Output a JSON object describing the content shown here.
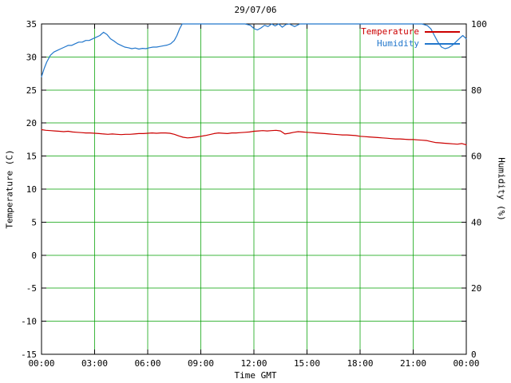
{
  "chart_data": {
    "type": "line",
    "title": "29/07/06",
    "grid": {
      "on": true,
      "color": "#00a000"
    },
    "frame_color": "#000000",
    "background": "#ffffff",
    "legend": {
      "position": "top-right-inside"
    },
    "x_axis": {
      "label": "Time GMT",
      "range": [
        0,
        24
      ],
      "ticks": [
        "00:00",
        "03:00",
        "06:00",
        "09:00",
        "12:00",
        "15:00",
        "18:00",
        "21:00",
        "00:00"
      ],
      "tick_hours": [
        0,
        3,
        6,
        9,
        12,
        15,
        18,
        21,
        24
      ]
    },
    "y_left": {
      "label": "Temperature (C)",
      "range": [
        -15,
        35
      ],
      "ticks": [
        35,
        30,
        25,
        20,
        15,
        10,
        5,
        0,
        -5,
        -10,
        -15
      ]
    },
    "y_right": {
      "label": "Humidity (%)",
      "range": [
        0,
        100
      ],
      "ticks": [
        100,
        80,
        60,
        40,
        20,
        0
      ]
    },
    "series": [
      {
        "name": "Temperature",
        "axis": "left",
        "color": "#cc0000",
        "points": [
          [
            0,
            19
          ],
          [
            0.25,
            18.9
          ],
          [
            0.5,
            18.85
          ],
          [
            0.75,
            18.8
          ],
          [
            1,
            18.75
          ],
          [
            1.25,
            18.7
          ],
          [
            1.5,
            18.75
          ],
          [
            1.75,
            18.65
          ],
          [
            2,
            18.6
          ],
          [
            2.25,
            18.55
          ],
          [
            2.5,
            18.5
          ],
          [
            2.75,
            18.5
          ],
          [
            3,
            18.45
          ],
          [
            3.25,
            18.4
          ],
          [
            3.5,
            18.35
          ],
          [
            3.75,
            18.3
          ],
          [
            4,
            18.35
          ],
          [
            4.25,
            18.3
          ],
          [
            4.5,
            18.25
          ],
          [
            4.75,
            18.3
          ],
          [
            5,
            18.3
          ],
          [
            5.25,
            18.35
          ],
          [
            5.5,
            18.4
          ],
          [
            5.75,
            18.4
          ],
          [
            6,
            18.45
          ],
          [
            6.25,
            18.5
          ],
          [
            6.5,
            18.45
          ],
          [
            6.75,
            18.5
          ],
          [
            7,
            18.5
          ],
          [
            7.25,
            18.45
          ],
          [
            7.5,
            18.3
          ],
          [
            7.75,
            18.05
          ],
          [
            8,
            17.85
          ],
          [
            8.25,
            17.75
          ],
          [
            8.5,
            17.8
          ],
          [
            8.75,
            17.9
          ],
          [
            9,
            18
          ],
          [
            9.25,
            18.1
          ],
          [
            9.5,
            18.25
          ],
          [
            9.75,
            18.4
          ],
          [
            10,
            18.5
          ],
          [
            10.25,
            18.45
          ],
          [
            10.5,
            18.4
          ],
          [
            10.75,
            18.5
          ],
          [
            11,
            18.5
          ],
          [
            11.25,
            18.55
          ],
          [
            11.5,
            18.6
          ],
          [
            11.75,
            18.65
          ],
          [
            12,
            18.75
          ],
          [
            12.25,
            18.8
          ],
          [
            12.5,
            18.85
          ],
          [
            12.75,
            18.8
          ],
          [
            13,
            18.85
          ],
          [
            13.25,
            18.9
          ],
          [
            13.5,
            18.8
          ],
          [
            13.75,
            18.35
          ],
          [
            14,
            18.45
          ],
          [
            14.25,
            18.6
          ],
          [
            14.5,
            18.7
          ],
          [
            14.75,
            18.65
          ],
          [
            15,
            18.6
          ],
          [
            15.25,
            18.55
          ],
          [
            15.5,
            18.5
          ],
          [
            15.75,
            18.45
          ],
          [
            16,
            18.4
          ],
          [
            16.25,
            18.35
          ],
          [
            16.5,
            18.3
          ],
          [
            16.75,
            18.25
          ],
          [
            17,
            18.2
          ],
          [
            17.25,
            18.2
          ],
          [
            17.5,
            18.15
          ],
          [
            17.75,
            18.1
          ],
          [
            18,
            18
          ],
          [
            18.25,
            17.95
          ],
          [
            18.5,
            17.9
          ],
          [
            18.75,
            17.85
          ],
          [
            19,
            17.8
          ],
          [
            19.25,
            17.75
          ],
          [
            19.5,
            17.7
          ],
          [
            19.75,
            17.65
          ],
          [
            20,
            17.6
          ],
          [
            20.25,
            17.6
          ],
          [
            20.5,
            17.55
          ],
          [
            20.75,
            17.5
          ],
          [
            21,
            17.5
          ],
          [
            21.25,
            17.45
          ],
          [
            21.5,
            17.4
          ],
          [
            21.75,
            17.35
          ],
          [
            22,
            17.2
          ],
          [
            22.25,
            17.05
          ],
          [
            22.5,
            17
          ],
          [
            22.75,
            16.95
          ],
          [
            23,
            16.9
          ],
          [
            23.25,
            16.85
          ],
          [
            23.5,
            16.8
          ],
          [
            23.75,
            16.9
          ],
          [
            24,
            16.7
          ]
        ]
      },
      {
        "name": "Humidity",
        "axis": "right",
        "color": "#2277cc",
        "points": [
          [
            0,
            84
          ],
          [
            0.15,
            86.5
          ],
          [
            0.3,
            88.5
          ],
          [
            0.5,
            90.5
          ],
          [
            0.7,
            91.5
          ],
          [
            0.9,
            92
          ],
          [
            1.1,
            92.5
          ],
          [
            1.3,
            93
          ],
          [
            1.5,
            93.5
          ],
          [
            1.7,
            93.5
          ],
          [
            1.9,
            94
          ],
          [
            2.1,
            94.5
          ],
          [
            2.3,
            94.5
          ],
          [
            2.5,
            95
          ],
          [
            2.7,
            95
          ],
          [
            2.9,
            95.5
          ],
          [
            3.1,
            96
          ],
          [
            3.3,
            96.5
          ],
          [
            3.5,
            97.5
          ],
          [
            3.7,
            96.8
          ],
          [
            3.9,
            95.5
          ],
          [
            4.1,
            94.8
          ],
          [
            4.3,
            94
          ],
          [
            4.5,
            93.5
          ],
          [
            4.7,
            93
          ],
          [
            4.9,
            92.8
          ],
          [
            5.1,
            92.5
          ],
          [
            5.3,
            92.7
          ],
          [
            5.5,
            92.4
          ],
          [
            5.7,
            92.6
          ],
          [
            5.9,
            92.5
          ],
          [
            6.1,
            92.8
          ],
          [
            6.3,
            93
          ],
          [
            6.5,
            93
          ],
          [
            6.7,
            93.2
          ],
          [
            6.9,
            93.4
          ],
          [
            7.1,
            93.6
          ],
          [
            7.3,
            94
          ],
          [
            7.5,
            95
          ],
          [
            7.65,
            96.5
          ],
          [
            7.8,
            98.5
          ],
          [
            7.95,
            100
          ],
          [
            8.5,
            100
          ],
          [
            9,
            100
          ],
          [
            9.5,
            100
          ],
          [
            10,
            100
          ],
          [
            10.5,
            100
          ],
          [
            11,
            100
          ],
          [
            11.5,
            100
          ],
          [
            11.8,
            99.6
          ],
          [
            12,
            98.6
          ],
          [
            12.2,
            98.2
          ],
          [
            12.4,
            98.8
          ],
          [
            12.6,
            99.6
          ],
          [
            12.8,
            99.2
          ],
          [
            13,
            100
          ],
          [
            13.2,
            99.4
          ],
          [
            13.4,
            100
          ],
          [
            13.6,
            99
          ],
          [
            13.8,
            99.8
          ],
          [
            14,
            100
          ],
          [
            14.3,
            99.2
          ],
          [
            14.6,
            100
          ],
          [
            15,
            100
          ],
          [
            16,
            100
          ],
          [
            17,
            100
          ],
          [
            18,
            100
          ],
          [
            19,
            100
          ],
          [
            20,
            100
          ],
          [
            21,
            100
          ],
          [
            21.5,
            100
          ],
          [
            21.8,
            99.5
          ],
          [
            22,
            98.5
          ],
          [
            22.2,
            96.5
          ],
          [
            22.4,
            94.5
          ],
          [
            22.6,
            93
          ],
          [
            22.8,
            92.5
          ],
          [
            23,
            92.8
          ],
          [
            23.2,
            93.5
          ],
          [
            23.4,
            94.5
          ],
          [
            23.6,
            95.5
          ],
          [
            23.8,
            96.5
          ],
          [
            24,
            95.5
          ]
        ]
      }
    ]
  }
}
